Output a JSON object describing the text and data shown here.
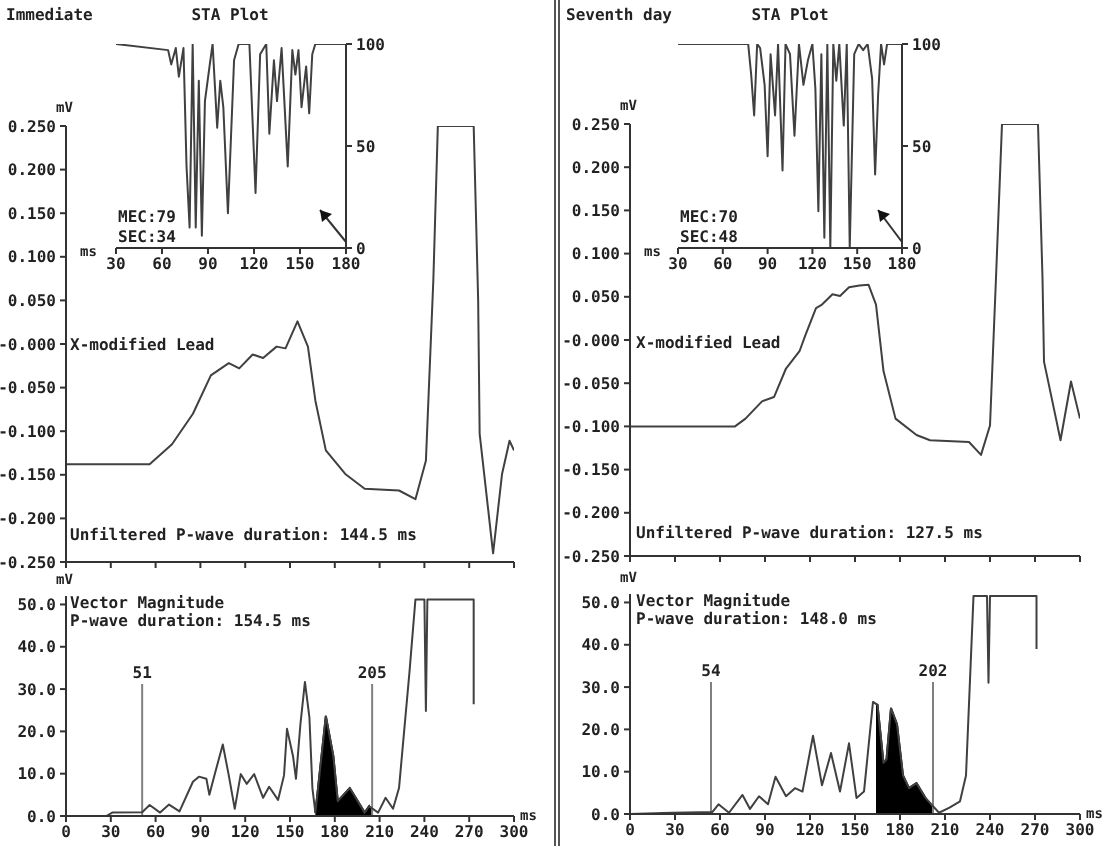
{
  "chart_data": [
    {
      "type": "line",
      "title": "STA Plot",
      "xlabel": "ms",
      "annotations": [
        "MEC:79",
        "SEC:34"
      ],
      "xlim": [
        30,
        180
      ],
      "xticks": [
        30,
        60,
        90,
        120,
        150,
        180
      ],
      "ylim": [
        0,
        100
      ],
      "yticks": [
        0,
        50,
        100
      ],
      "series": [
        {
          "color": "#404040",
          "x": [
            30,
            64,
            66,
            69,
            71,
            74,
            76,
            78,
            80,
            82,
            84,
            86,
            88,
            91,
            93,
            96,
            98,
            100,
            103,
            107,
            110,
            117,
            121,
            124,
            128,
            130,
            133,
            135,
            138,
            142,
            145,
            147,
            149,
            151,
            154,
            156,
            158,
            160,
            180
          ],
          "values": [
            100,
            97,
            90,
            98,
            84,
            98,
            40,
            10,
            100,
            10,
            82,
            6,
            72,
            89,
            100,
            59,
            82,
            69,
            17,
            92,
            100,
            100,
            27,
            95,
            100,
            56,
            92,
            72,
            98,
            40,
            97,
            85,
            97,
            69,
            89,
            66,
            95,
            100,
            100
          ]
        }
      ]
    },
    {
      "type": "line",
      "title": "Immediate",
      "ylabel": "mV",
      "annotations": [
        "X-modified Lead",
        "Unfiltered P-wave duration: 144.5 ms"
      ],
      "tick_labels": "y",
      "xlim": [
        0,
        300
      ],
      "xticks": [
        {
          "value": 0,
          "label": null
        },
        {
          "value": 30,
          "label": null
        },
        {
          "value": 60,
          "label": null
        },
        {
          "value": 90,
          "label": null
        },
        {
          "value": 120,
          "label": null
        },
        {
          "value": 150,
          "label": null
        },
        {
          "value": 180,
          "label": null
        },
        {
          "value": 210,
          "label": null
        },
        {
          "value": 240,
          "label": null
        },
        {
          "value": 270,
          "label": null
        },
        {
          "value": 300,
          "label": null
        }
      ],
      "ylim": [
        -0.25,
        0.25
      ],
      "yticks": [
        {
          "value": 0.25,
          "label": "0.250"
        },
        {
          "value": 0.2,
          "label": "0.200"
        },
        {
          "value": 0.15,
          "label": "0.150"
        },
        {
          "value": 0.1,
          "label": "0.100"
        },
        {
          "value": 0.05,
          "label": "0.050"
        },
        {
          "value": 0,
          "label": "-0.000"
        },
        {
          "value": -0.05,
          "label": "-0.050"
        },
        {
          "value": -0.1,
          "label": "-0.100"
        },
        {
          "value": -0.15,
          "label": "-0.150"
        },
        {
          "value": -0.2,
          "label": "-0.200"
        },
        {
          "value": -0.25,
          "label": "-0.250"
        }
      ],
      "series": [
        {
          "color": "#404040",
          "x": [
            0,
            56,
            71,
            85,
            97,
            109,
            116,
            125,
            132,
            141,
            147,
            155,
            162,
            167,
            174,
            187,
            200,
            223,
            234,
            241,
            246,
            249,
            273,
            276,
            277,
            286,
            292,
            297,
            300
          ],
          "values": [
            -0.138,
            -0.138,
            -0.115,
            -0.08,
            -0.036,
            -0.022,
            -0.028,
            -0.012,
            -0.016,
            -0.003,
            -0.005,
            0.026,
            -0.003,
            -0.065,
            -0.122,
            -0.149,
            -0.166,
            -0.168,
            -0.178,
            -0.134,
            0.074,
            0.25,
            0.25,
            0.05,
            -0.103,
            -0.24,
            -0.149,
            -0.111,
            -0.122
          ]
        }
      ]
    },
    {
      "type": "line",
      "xlabel": "ms",
      "ylabel": "mV",
      "annotations": [
        "Vector Magnitude",
        "P-wave duration: 154.5 ms"
      ],
      "xlim": [
        0,
        300
      ],
      "xticks": [
        0,
        30,
        60,
        90,
        120,
        150,
        180,
        210,
        240,
        270,
        300
      ],
      "ylim": [
        0,
        52
      ],
      "yticks": [
        {
          "value": 0,
          "label": "0.0"
        },
        {
          "value": 10,
          "label": "10.0"
        },
        {
          "value": 20,
          "label": "20.0"
        },
        {
          "value": 30,
          "label": "30.0"
        },
        {
          "value": 40,
          "label": "40.0"
        },
        {
          "value": 50,
          "label": "50.0"
        }
      ],
      "ref_lines": [
        {
          "axis": "x",
          "value": 51,
          "label": "51",
          "color": "#808080"
        },
        {
          "axis": "x",
          "value": 205,
          "label": "205",
          "color": "#808080"
        }
      ],
      "series": [
        {
          "color": "#404040",
          "x": [
            0,
            27,
            31,
            51,
            56,
            63,
            69,
            76,
            85,
            89,
            94,
            96,
            100,
            105,
            109,
            113,
            117,
            121,
            126,
            132,
            136,
            142,
            146,
            148,
            152,
            154,
            157,
            160,
            163,
            165,
            167,
            174,
            179,
            182,
            190,
            194,
            200,
            203,
            209,
            214,
            219,
            223,
            230,
            234,
            240,
            241,
            242,
            273,
            273
          ],
          "values": [
            0,
            0,
            0.8,
            0.9,
            2.6,
            0.8,
            2.7,
            1.1,
            8.1,
            9.3,
            8.8,
            5,
            10.4,
            16.9,
            9.6,
            1.7,
            9.9,
            7.6,
            9.9,
            4.3,
            6.9,
            3.8,
            9.6,
            20.6,
            14.2,
            8.8,
            21.8,
            31.7,
            23.3,
            6.6,
            0.8,
            23.6,
            14.2,
            3.5,
            6.6,
            4.3,
            0.8,
            2.3,
            0.8,
            4.3,
            1.7,
            6.6,
            34,
            51.2,
            51.2,
            24.8,
            51.2,
            51.2,
            26.4
          ]
        },
        {
          "type": "area",
          "color": "#000000",
          "x": [
            167,
            174,
            179,
            182,
            190,
            194,
            200,
            203,
            205
          ],
          "values": [
            0.8,
            23.6,
            14.2,
            3.5,
            6.6,
            4.3,
            0.8,
            2.3,
            0.9
          ]
        }
      ]
    },
    {
      "type": "line",
      "title": "STA Plot",
      "xlabel": "ms",
      "annotations": [
        "MEC:70",
        "SEC:48"
      ],
      "xlim": [
        30,
        180
      ],
      "xticks": [
        30,
        60,
        90,
        120,
        150,
        180
      ],
      "ylim": [
        0,
        100
      ],
      "yticks": [
        0,
        50,
        100
      ],
      "series": [
        {
          "color": "#404040",
          "x": [
            30,
            77,
            79,
            81,
            83,
            85,
            88,
            90,
            92,
            95,
            97,
            100,
            102,
            105,
            108,
            111,
            114,
            117,
            120,
            122,
            124,
            126,
            128,
            130,
            132,
            134,
            136,
            138,
            141,
            143,
            145,
            148,
            151,
            154,
            157,
            160,
            162,
            164,
            166,
            168,
            170,
            180
          ],
          "values": [
            100,
            100,
            85,
            65,
            100,
            98,
            80,
            45,
            95,
            65,
            100,
            38,
            100,
            95,
            55,
            100,
            80,
            92,
            100,
            78,
            18,
            95,
            5,
            100,
            0,
            100,
            82,
            100,
            60,
            100,
            0,
            95,
            100,
            97,
            100,
            83,
            36,
            75,
            100,
            90,
            100,
            100
          ]
        }
      ]
    },
    {
      "type": "line",
      "title": "Seventh day",
      "ylabel": "mV",
      "annotations": [
        "X-modified Lead",
        "Unfiltered P-wave duration: 127.5 ms"
      ],
      "tick_labels": "y",
      "xlim": [
        0,
        300
      ],
      "xticks": [
        {
          "value": 0,
          "label": null
        },
        {
          "value": 30,
          "label": null
        },
        {
          "value": 60,
          "label": null
        },
        {
          "value": 90,
          "label": null
        },
        {
          "value": 120,
          "label": null
        },
        {
          "value": 150,
          "label": null
        },
        {
          "value": 180,
          "label": null
        },
        {
          "value": 210,
          "label": null
        },
        {
          "value": 240,
          "label": null
        },
        {
          "value": 270,
          "label": null
        },
        {
          "value": 300,
          "label": null
        }
      ],
      "ylim": [
        -0.25,
        0.25
      ],
      "yticks": [
        {
          "value": 0.25,
          "label": "0.250"
        },
        {
          "value": 0.2,
          "label": "0.200"
        },
        {
          "value": 0.15,
          "label": "0.150"
        },
        {
          "value": 0.1,
          "label": "0.100"
        },
        {
          "value": 0.05,
          "label": "0.050"
        },
        {
          "value": 0,
          "label": "-0.000"
        },
        {
          "value": -0.05,
          "label": "-0.050"
        },
        {
          "value": -0.1,
          "label": "-0.100"
        },
        {
          "value": -0.15,
          "label": "-0.150"
        },
        {
          "value": -0.2,
          "label": "-0.200"
        },
        {
          "value": -0.25,
          "label": "-0.250"
        }
      ],
      "series": [
        {
          "color": "#404040",
          "x": [
            0,
            70,
            77,
            88,
            96,
            104,
            113,
            117,
            124,
            128,
            135,
            140,
            146,
            153,
            159,
            164,
            169,
            177,
            191,
            200,
            226,
            234,
            240,
            244,
            248,
            272,
            275,
            276,
            284,
            287,
            294,
            300
          ],
          "values": [
            -0.1,
            -0.1,
            -0.091,
            -0.071,
            -0.066,
            -0.033,
            -0.013,
            0.006,
            0.037,
            0.041,
            0.053,
            0.051,
            0.061,
            0.063,
            0.064,
            0.041,
            -0.036,
            -0.091,
            -0.11,
            -0.116,
            -0.118,
            -0.133,
            -0.099,
            0.072,
            0.25,
            0.25,
            0.072,
            -0.025,
            -0.091,
            -0.116,
            -0.048,
            -0.091
          ]
        }
      ]
    },
    {
      "type": "line",
      "xlabel": "ms",
      "ylabel": "mV",
      "annotations": [
        "Vector Magnitude",
        "P-wave duration: 148.0 ms"
      ],
      "xlim": [
        0,
        300
      ],
      "xticks": [
        0,
        30,
        60,
        90,
        120,
        150,
        180,
        210,
        240,
        270,
        300
      ],
      "ylim": [
        0,
        52
      ],
      "yticks": [
        {
          "value": 0,
          "label": "0.0"
        },
        {
          "value": 10,
          "label": "10.0"
        },
        {
          "value": 20,
          "label": "20.0"
        },
        {
          "value": 30,
          "label": "30.0"
        },
        {
          "value": 40,
          "label": "40.0"
        },
        {
          "value": 50,
          "label": "50.0"
        }
      ],
      "ref_lines": [
        {
          "axis": "x",
          "value": 54,
          "label": "54",
          "color": "#808080"
        },
        {
          "axis": "x",
          "value": 202,
          "label": "202",
          "color": "#808080"
        }
      ],
      "series": [
        {
          "color": "#404040",
          "x": [
            0,
            28,
            55,
            59,
            66,
            75,
            80,
            86,
            92,
            97,
            104,
            110,
            115,
            122,
            128,
            134,
            140,
            146,
            151,
            156,
            162,
            165,
            169,
            171,
            174,
            178,
            182,
            186,
            191,
            197,
            206,
            213,
            220,
            224,
            229,
            238,
            239,
            240,
            271,
            271
          ],
          "values": [
            0,
            0.3,
            0.5,
            2.3,
            0.3,
            4.5,
            1.2,
            4.2,
            2.3,
            8.8,
            4.2,
            6.1,
            5.3,
            18.5,
            6.8,
            14.4,
            5.3,
            16.7,
            3.8,
            5.3,
            26.5,
            25.8,
            12.1,
            12.9,
            25,
            21.2,
            9.1,
            6.1,
            7.3,
            3.8,
            0.3,
            1.5,
            3,
            9.1,
            51.5,
            51.5,
            31,
            51.5,
            51.5,
            39
          ]
        },
        {
          "type": "area",
          "color": "#000000",
          "x": [
            164,
            165,
            169,
            171,
            174,
            178,
            182,
            186,
            191,
            197,
            202
          ],
          "values": [
            26,
            25.8,
            12.1,
            12.9,
            25,
            21.2,
            9.1,
            6.1,
            7.3,
            3.8,
            1
          ]
        }
      ]
    }
  ]
}
